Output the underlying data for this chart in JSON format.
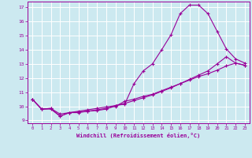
{
  "title": "",
  "xlabel": "Windchill (Refroidissement éolien,°C)",
  "background_color": "#cce9f0",
  "grid_color": "#ffffff",
  "line_color": "#990099",
  "xlim": [
    -0.5,
    23.5
  ],
  "ylim": [
    8.8,
    17.4
  ],
  "yticks": [
    9,
    10,
    11,
    12,
    13,
    14,
    15,
    16,
    17
  ],
  "xticks": [
    0,
    1,
    2,
    3,
    4,
    5,
    6,
    7,
    8,
    9,
    10,
    11,
    12,
    13,
    14,
    15,
    16,
    17,
    18,
    19,
    20,
    21,
    22,
    23
  ],
  "line1_x": [
    0,
    1,
    2,
    3,
    4,
    5,
    6,
    7,
    8,
    9,
    10,
    11,
    12,
    13,
    14,
    15,
    16,
    17,
    18,
    19,
    20,
    21,
    22,
    23
  ],
  "line1_y": [
    10.5,
    9.8,
    9.8,
    9.3,
    9.55,
    9.55,
    9.65,
    9.7,
    9.8,
    10.05,
    10.15,
    11.6,
    12.5,
    13.0,
    14.0,
    15.05,
    16.55,
    17.15,
    17.15,
    16.55,
    15.3,
    14.05,
    13.35,
    13.05
  ],
  "line2_x": [
    0,
    1,
    2,
    3,
    4,
    5,
    6,
    7,
    8,
    9,
    10,
    11,
    12,
    13,
    14,
    15,
    16,
    17,
    18,
    19,
    20,
    21,
    22,
    23
  ],
  "line2_y": [
    10.5,
    9.8,
    9.85,
    9.3,
    9.55,
    9.6,
    9.65,
    9.75,
    9.85,
    10.0,
    10.35,
    10.5,
    10.7,
    10.85,
    11.1,
    11.35,
    11.6,
    11.85,
    12.1,
    12.3,
    12.55,
    12.85,
    13.05,
    12.9
  ],
  "line3_x": [
    0,
    1,
    2,
    3,
    4,
    5,
    6,
    7,
    8,
    9,
    10,
    11,
    12,
    13,
    14,
    15,
    16,
    17,
    18,
    19,
    20,
    21,
    22,
    23
  ],
  "line3_y": [
    10.5,
    9.8,
    9.85,
    9.45,
    9.55,
    9.65,
    9.75,
    9.85,
    9.95,
    10.05,
    10.2,
    10.4,
    10.6,
    10.8,
    11.05,
    11.3,
    11.6,
    11.9,
    12.2,
    12.5,
    13.0,
    13.5,
    13.05,
    12.9
  ],
  "figsize": [
    3.2,
    2.0
  ],
  "dpi": 100
}
